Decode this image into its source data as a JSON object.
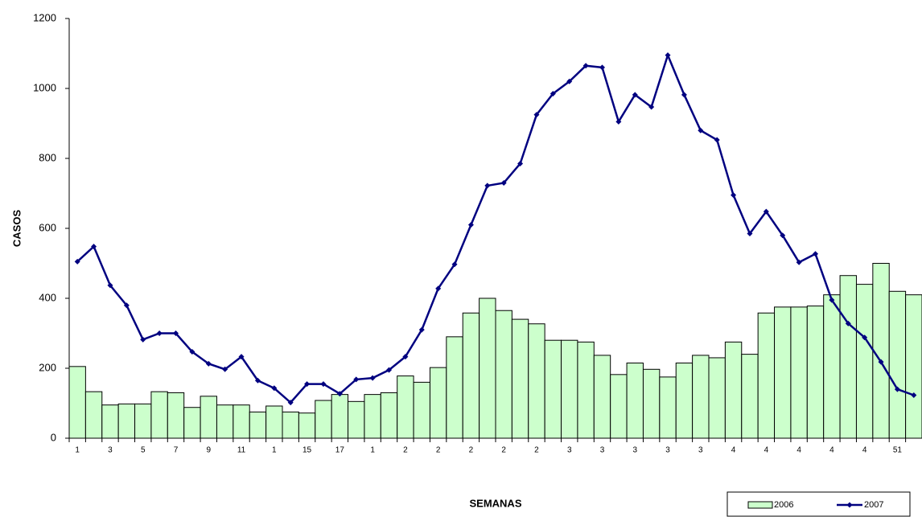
{
  "chart_data": {
    "type": "bar_line",
    "x_label": "SEMANAS",
    "y_label": "CASOS",
    "categories": [
      "1",
      null,
      "3",
      null,
      "5",
      null,
      "7",
      null,
      "9",
      null,
      "11",
      null,
      "1",
      null,
      "15",
      null,
      "17",
      null,
      "1",
      null,
      "2",
      null,
      "2",
      null,
      "2",
      null,
      "2",
      null,
      "2",
      null,
      "3",
      null,
      "3",
      null,
      "3",
      null,
      "3",
      null,
      "3",
      null,
      "4",
      null,
      "4",
      null,
      "4",
      null,
      "4",
      null,
      "4",
      null,
      "51",
      null
    ],
    "series": [
      {
        "name": "2006",
        "kind": "bar",
        "color": "#ccffcc",
        "values": [
          205,
          133,
          95,
          98,
          98,
          133,
          130,
          88,
          120,
          95,
          95,
          75,
          92,
          75,
          72,
          108,
          125,
          105,
          125,
          130,
          178,
          160,
          202,
          290,
          358,
          400,
          365,
          340,
          327,
          280,
          280,
          275,
          237,
          182,
          215,
          197,
          175,
          215,
          237,
          230,
          275,
          240,
          358,
          375,
          375,
          378,
          410,
          465,
          440,
          500,
          420,
          410
        ]
      },
      {
        "name": "2007",
        "kind": "line",
        "color": "#000080",
        "values": [
          505,
          548,
          437,
          380,
          282,
          300,
          300,
          247,
          213,
          197,
          233,
          165,
          143,
          102,
          155,
          155,
          127,
          168,
          172,
          195,
          233,
          310,
          428,
          497,
          610,
          722,
          730,
          785,
          925,
          985,
          1020,
          1065,
          1060,
          905,
          982,
          947,
          1095,
          982,
          880,
          853,
          695,
          585,
          648,
          580,
          503,
          527,
          395,
          328,
          288,
          218,
          140,
          123
        ]
      }
    ],
    "ylim": [
      0,
      1200
    ],
    "yticks": [
      0,
      200,
      400,
      600,
      800,
      1000,
      1200
    ],
    "legend": "bottom-right"
  }
}
